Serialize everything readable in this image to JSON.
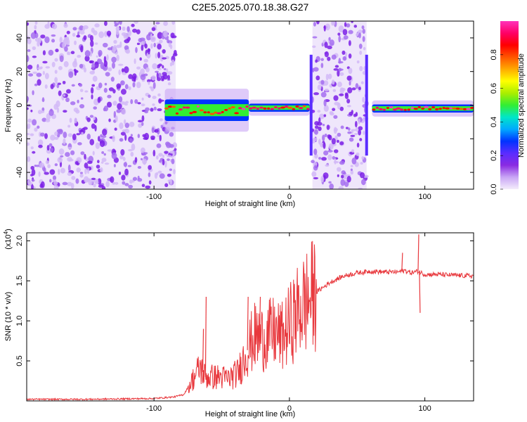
{
  "title": "C2E5.2025.070.18.38.G27",
  "chart_data": [
    {
      "type": "heatmap",
      "xlabel": "Height of straight line (km)",
      "ylabel": "Frequency (Hz)",
      "xlim": [
        -194,
        136
      ],
      "ylim": [
        -50,
        50
      ],
      "x_ticks": [
        -100,
        0,
        100
      ],
      "y_ticks": [
        -40,
        -20,
        0,
        20,
        40
      ],
      "noise_regions": [
        [
          -194,
          -84
        ],
        [
          17,
          57
        ]
      ],
      "signal_segments": [
        {
          "x": [
            -92,
            -30
          ],
          "freq": -3,
          "spread": 8
        },
        {
          "x": [
            -30,
            15
          ],
          "freq": -1.5,
          "spread": 3
        },
        {
          "x": [
            61,
            136
          ],
          "freq": -2,
          "spread": 3
        }
      ],
      "grid": false
    },
    {
      "type": "colorbar",
      "label": "Normalized spectral amplitude",
      "range": [
        0.0,
        1.0
      ],
      "ticks": [
        "0.0",
        "0.2",
        "0.4",
        "0.6",
        "0.8"
      ],
      "colormap": [
        "#f4ecfb",
        "#c9a6f5",
        "#8a2be2",
        "#5a2cff",
        "#0033ff",
        "#00aaff",
        "#00e6c8",
        "#33ee33",
        "#aaee00",
        "#ffff00",
        "#ffaa00",
        "#ff5500",
        "#ff0000",
        "#ff0066",
        "#ff33bb"
      ]
    },
    {
      "type": "line",
      "xlabel": "Height of straight line (km)",
      "ylabel": "SNR (10 * v/v)",
      "y_multiplier": "(x10",
      "y_multiplier_exp": "4",
      "xlim": [
        -194,
        136
      ],
      "ylim": [
        0,
        2.1
      ],
      "x_ticks": [
        -100,
        0,
        100
      ],
      "y_ticks": [
        0.5,
        1.0,
        1.5,
        2.0
      ],
      "y_tick_labels": [
        "0.5",
        "1.0",
        "1.5",
        "2.0"
      ],
      "series": [
        {
          "color": "#e8383d",
          "x": [
            -194,
            -150,
            -100,
            -85,
            -78,
            -72,
            -66,
            -62,
            -58,
            -52,
            -45,
            -38,
            -32,
            -26,
            -20,
            -12,
            -5,
            0,
            5,
            10,
            15,
            20,
            25,
            30,
            35,
            40,
            50,
            60,
            70,
            80,
            85,
            90,
            95,
            100,
            110,
            120,
            136
          ],
          "y": [
            0.02,
            0.02,
            0.03,
            0.05,
            0.08,
            0.25,
            0.42,
            0.3,
            0.3,
            0.3,
            0.28,
            0.35,
            0.6,
            0.8,
            0.78,
            0.85,
            0.8,
            0.95,
            1.08,
            1.2,
            1.28,
            1.36,
            1.42,
            1.48,
            1.52,
            1.56,
            1.6,
            1.62,
            1.61,
            1.61,
            1.63,
            1.6,
            1.62,
            1.58,
            1.58,
            1.57,
            1.56
          ],
          "spikes": [
            {
              "x": -62,
              "y": 1.3
            },
            {
              "x": -64,
              "y": 0.9
            },
            {
              "x": -31,
              "y": 1.3
            },
            {
              "x": -22,
              "y": 1.3
            },
            {
              "x": 83,
              "y": 1.85
            },
            {
              "x": 95,
              "y": 2.08
            },
            {
              "x": 96,
              "y": 1.1
            }
          ]
        }
      ],
      "grid": false
    }
  ]
}
